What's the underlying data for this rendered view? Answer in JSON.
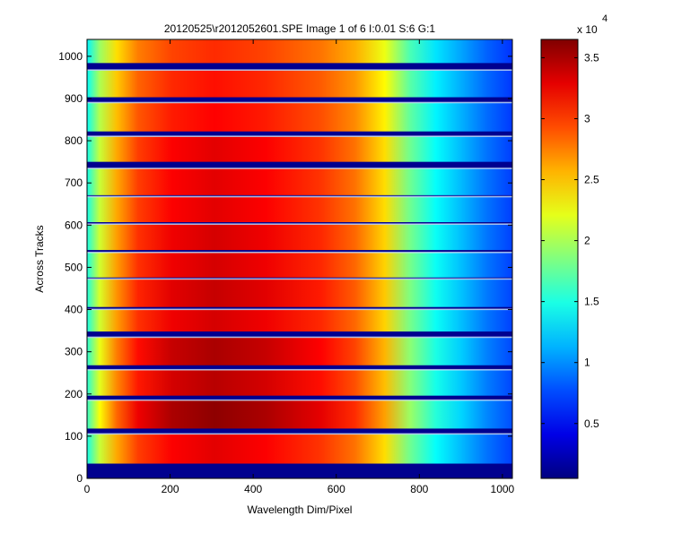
{
  "chart_data": {
    "type": "heatmap",
    "title": "20120525\\r2012052601.SPE  Image 1 of 6  I:0.01  S:6  G:1",
    "xlabel": "Wavelength Dim/Pixel",
    "ylabel": "Across Tracks",
    "xlim": [
      0,
      1024
    ],
    "ylim": [
      0,
      1040
    ],
    "x_ticks": [
      0,
      200,
      400,
      600,
      800,
      1000
    ],
    "y_ticks": [
      0,
      100,
      200,
      300,
      400,
      500,
      600,
      700,
      800,
      900,
      1000
    ],
    "colorbar": {
      "colormap": "jet",
      "range": [
        500,
        36500
      ],
      "ticks": [
        0.5,
        1,
        1.5,
        2,
        2.5,
        3,
        3.5
      ],
      "tick_labels": [
        "0.5",
        "1",
        "1.5",
        "2",
        "2.5",
        "3",
        "3.5"
      ],
      "exponent_label": "x 10",
      "exponent": "4"
    },
    "tracks": [
      {
        "y_from": 35,
        "y_to": 105,
        "peak": 33000
      },
      {
        "y_from": 118,
        "y_to": 185,
        "peak": 36000
      },
      {
        "y_from": 196,
        "y_to": 257,
        "peak": 34500
      },
      {
        "y_from": 268,
        "y_to": 334,
        "peak": 35000
      },
      {
        "y_from": 348,
        "y_to": 400,
        "peak": 33500
      },
      {
        "y_from": 406,
        "y_to": 472,
        "peak": 34000
      },
      {
        "y_from": 476,
        "y_to": 535,
        "peak": 33500
      },
      {
        "y_from": 541,
        "y_to": 602,
        "peak": 33500
      },
      {
        "y_from": 607,
        "y_to": 667,
        "peak": 33000
      },
      {
        "y_from": 671,
        "y_to": 734,
        "peak": 33000
      },
      {
        "y_from": 750,
        "y_to": 810,
        "peak": 33000
      },
      {
        "y_from": 822,
        "y_to": 890,
        "peak": 32000
      },
      {
        "y_from": 903,
        "y_to": 967,
        "peak": 31500
      },
      {
        "y_from": 984,
        "y_to": 1040,
        "peak": 30500
      }
    ],
    "background_value": 1500,
    "grid": false
  }
}
